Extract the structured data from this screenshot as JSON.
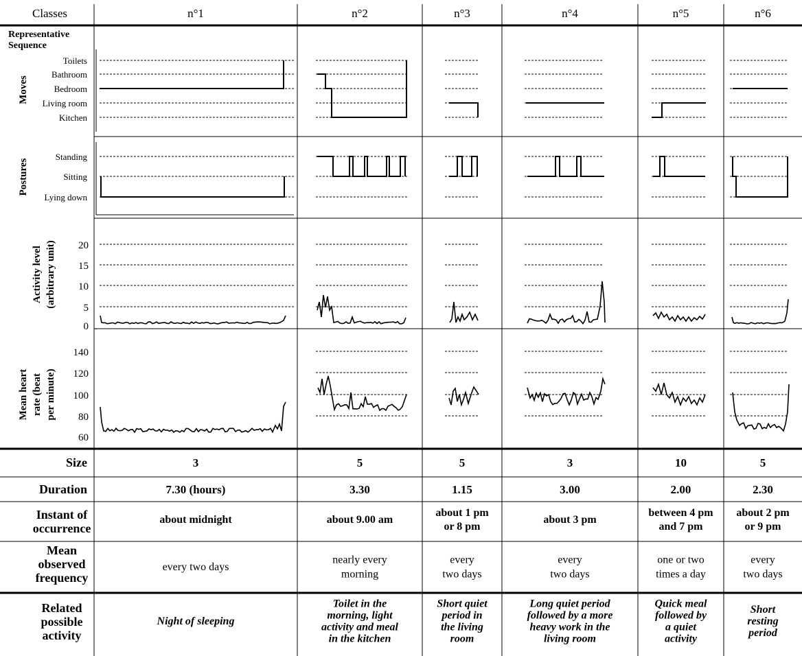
{
  "header": {
    "classes_label": "Classes",
    "columns": [
      "n°1",
      "n°2",
      "n°3",
      "n°4",
      "n°5",
      "n°6"
    ]
  },
  "representative_sequence_label": [
    "Representative",
    "Sequence"
  ],
  "moves": {
    "row_label": "Moves",
    "levels": [
      "Toilets",
      "Bathroom",
      "Bedroom",
      "Living room",
      "Kitchen"
    ]
  },
  "postures": {
    "row_label": "Postures",
    "levels": [
      "Standing",
      "Sitting",
      "Lying down"
    ]
  },
  "activity": {
    "row_label": [
      "Activity level",
      "(arbitrary unit)"
    ],
    "ticks": [
      "20",
      "15",
      "10",
      "5",
      "0"
    ]
  },
  "heart_rate": {
    "row_label": [
      "Mean heart",
      "rate (beat",
      "per minute)"
    ],
    "ticks": [
      "140",
      "120",
      "100",
      "80",
      "60"
    ]
  },
  "table": {
    "size": {
      "label": "Size",
      "values": [
        "3",
        "5",
        "5",
        "3",
        "10",
        "5"
      ]
    },
    "duration": {
      "label": "Duration",
      "values": [
        "7.30  (hours)",
        "3.30",
        "1.15",
        "3.00",
        "2.00",
        "2.30"
      ]
    },
    "instant": {
      "label": [
        "Instant of",
        "occurrence"
      ],
      "values": [
        [
          "about midnight"
        ],
        [
          "about 9.00 am"
        ],
        [
          "about 1 pm",
          "or 8 pm"
        ],
        [
          "about 3 pm"
        ],
        [
          "between 4 pm",
          "and 7 pm"
        ],
        [
          "about 2 pm",
          "or 9 pm"
        ]
      ]
    },
    "frequency": {
      "label": [
        "Mean",
        "observed",
        "frequency"
      ],
      "values": [
        [
          "every two days"
        ],
        [
          "nearly every",
          "morning"
        ],
        [
          "every",
          "two days"
        ],
        [
          "every",
          "two days"
        ],
        [
          "one or two",
          "times a day"
        ],
        [
          "every",
          "two days"
        ]
      ]
    },
    "activity": {
      "label": [
        "Related",
        "possible",
        "activity"
      ],
      "values": [
        [
          "Night of sleeping"
        ],
        [
          "Toilet in the",
          "morning, light",
          "activity and meal",
          "in the kitchen"
        ],
        [
          "Short quiet",
          "period in",
          "the living",
          "room"
        ],
        [
          "Long quiet period",
          "followed by a more",
          "heavy work in the",
          "living room"
        ],
        [
          "Quick meal",
          "followed by",
          "a quiet",
          "activity"
        ],
        [
          "Short",
          "resting",
          "period"
        ]
      ]
    }
  }
}
